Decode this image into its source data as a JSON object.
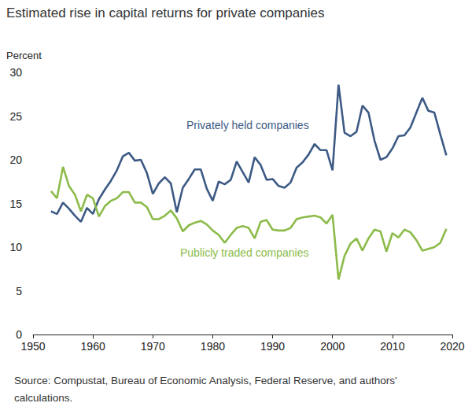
{
  "chart_data": {
    "type": "line",
    "title": "Estimated rise in capital returns for private companies",
    "y_label": "Percent",
    "source": "Source: Compustat, Bureau of Economic Analysis, Federal Reserve, and authors' calculations.",
    "x": [
      1953,
      1954,
      1955,
      1956,
      1957,
      1958,
      1959,
      1960,
      1961,
      1962,
      1963,
      1964,
      1965,
      1966,
      1967,
      1968,
      1969,
      1970,
      1971,
      1972,
      1973,
      1974,
      1975,
      1976,
      1977,
      1978,
      1979,
      1980,
      1981,
      1982,
      1983,
      1984,
      1985,
      1986,
      1987,
      1988,
      1989,
      1990,
      1991,
      1992,
      1993,
      1994,
      1995,
      1996,
      1997,
      1998,
      1999,
      2000,
      2001,
      2002,
      2003,
      2004,
      2005,
      2006,
      2007,
      2008,
      2009,
      2010,
      2011,
      2012,
      2013,
      2014,
      2015,
      2016,
      2017,
      2018,
      2019
    ],
    "series": [
      {
        "name": "Privately held companies",
        "color": "#3d5a85",
        "values": [
          14.1,
          13.8,
          15.1,
          14.4,
          13.6,
          12.9,
          14.5,
          13.8,
          15.5,
          16.6,
          17.6,
          18.8,
          20.4,
          20.8,
          19.9,
          20.0,
          18.5,
          16.1,
          17.3,
          18.0,
          17.3,
          14.0,
          16.8,
          17.8,
          18.9,
          18.9,
          16.7,
          15.3,
          17.5,
          17.2,
          17.7,
          19.8,
          18.6,
          17.4,
          20.3,
          19.4,
          17.7,
          17.8,
          17.0,
          16.8,
          17.4,
          19.1,
          19.7,
          20.6,
          21.8,
          21.1,
          21.1,
          18.8,
          28.6,
          23.1,
          22.7,
          23.2,
          26.2,
          25.4,
          22.2,
          20.0,
          20.3,
          21.3,
          22.7,
          22.8,
          23.7,
          25.4,
          27.1,
          25.6,
          25.4,
          22.9,
          20.5
        ]
      },
      {
        "name": "Publicly traded companies",
        "color": "#8cbb4a",
        "values": [
          16.4,
          15.6,
          19.2,
          17.0,
          16.0,
          14.1,
          16.0,
          15.6,
          13.5,
          14.7,
          15.3,
          15.6,
          16.3,
          16.3,
          15.1,
          15.1,
          14.6,
          13.2,
          13.2,
          13.6,
          14.2,
          13.3,
          11.8,
          12.5,
          12.8,
          13.0,
          12.6,
          11.9,
          11.4,
          10.5,
          11.4,
          12.2,
          12.4,
          12.2,
          11.0,
          12.9,
          13.1,
          12.0,
          11.9,
          11.9,
          12.2,
          13.2,
          13.4,
          13.5,
          13.6,
          13.4,
          12.7,
          13.7,
          6.3,
          9.0,
          10.4,
          11.0,
          9.6,
          11.0,
          12.0,
          11.8,
          9.5,
          11.6,
          11.1,
          12.0,
          11.7,
          10.8,
          9.6,
          9.8,
          10.0,
          10.5,
          12.1
        ]
      }
    ],
    "xlim": [
      1950,
      2020
    ],
    "xticks": [
      1950,
      1960,
      1970,
      1980,
      1990,
      2000,
      2010,
      2020
    ],
    "ylim": [
      0,
      30
    ],
    "yticks": [
      0,
      5,
      10,
      15,
      20,
      25,
      30
    ],
    "grid": false
  }
}
